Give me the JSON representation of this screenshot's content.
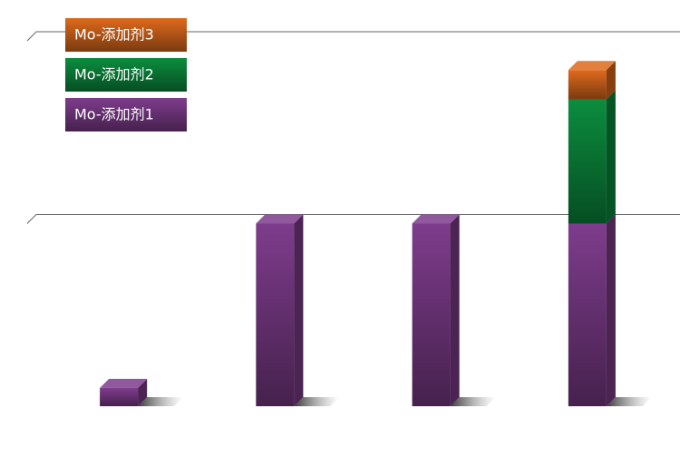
{
  "chart_data": {
    "type": "bar",
    "stacked": true,
    "categories": [
      null,
      null,
      null,
      null
    ],
    "series": [
      {
        "name": "Mo-添加剂1",
        "color": "#7e3c8c",
        "values": [
          0.1,
          1.0,
          1.0,
          1.0
        ]
      },
      {
        "name": "Mo-添加剂2",
        "color": "#0b8d3e",
        "values": [
          0,
          0,
          0,
          0.68
        ]
      },
      {
        "name": "Mo-添加剂3",
        "color": "#de6a1c",
        "values": [
          0,
          0,
          0,
          0.16
        ]
      }
    ],
    "ylim": [
      0,
      2
    ],
    "yticks": [
      1,
      2
    ],
    "grid": true
  }
}
